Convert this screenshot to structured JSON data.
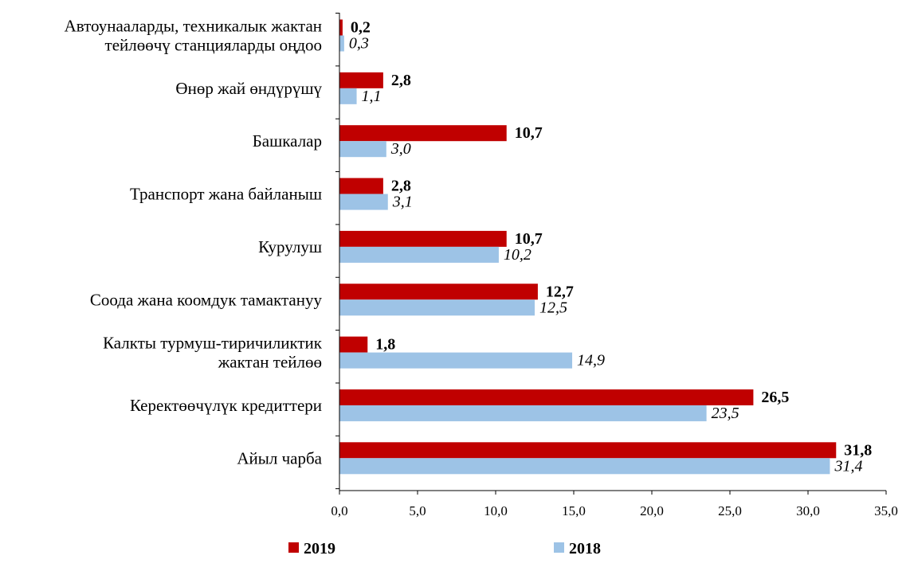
{
  "chart_data": {
    "type": "bar",
    "orientation": "horizontal",
    "categories": [
      [
        "Автоунааларды,  техникалык жактан",
        "тейлөөчү станцияларды  оңдоо"
      ],
      [
        "Өнөр жай өндүрүшү"
      ],
      [
        "Башкалар"
      ],
      [
        "Транспорт жана байланыш"
      ],
      [
        "Курулуш"
      ],
      [
        "Соода жана коомдук тамактануу"
      ],
      [
        "Калкты турмуш-тиричиликтик",
        "жактан тейлөө"
      ],
      [
        "Керектөөчүлүк кредиттери"
      ],
      [
        "Айыл чарба"
      ]
    ],
    "series": [
      {
        "name": "2019",
        "color": "#c00000",
        "values": [
          0.2,
          2.8,
          10.7,
          2.8,
          10.7,
          12.7,
          1.8,
          26.5,
          31.8
        ],
        "labels": [
          "0,2",
          "2,8",
          "10,7",
          "2,8",
          "10,7",
          "12,7",
          "1,8",
          "26,5",
          "31,8"
        ]
      },
      {
        "name": "2018",
        "color": "#9dc3e6",
        "values": [
          0.3,
          1.1,
          3.0,
          3.1,
          10.2,
          12.5,
          14.9,
          23.5,
          31.4
        ],
        "labels": [
          "0,3",
          "1,1",
          "3,0",
          "3,1",
          "10,2",
          "12,5",
          "14,9",
          "23,5",
          "31,4"
        ]
      }
    ],
    "xlim": [
      0,
      35
    ],
    "xticks": [
      0,
      5,
      10,
      15,
      20,
      25,
      30,
      35
    ],
    "xtick_labels": [
      "0,0",
      "5,0",
      "10,0",
      "15,0",
      "20,0",
      "25,0",
      "30,0",
      "35,0"
    ],
    "legend_position": "bottom",
    "grid": false
  }
}
